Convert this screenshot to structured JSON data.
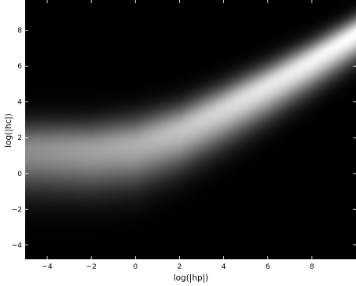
{
  "chart_data": {
    "type": "heatmap",
    "title": "",
    "xlabel": "log(|hp|)",
    "ylabel": "log(|hc|)",
    "xlim": [
      -5.0,
      10.0
    ],
    "ylim": [
      -4.8,
      9.7
    ],
    "colormap": "gray",
    "grid": false,
    "x_ticks": [
      {
        "value": -4,
        "label": "−4"
      },
      {
        "value": -2,
        "label": "−2"
      },
      {
        "value": 0,
        "label": "0"
      },
      {
        "value": 2,
        "label": "2"
      },
      {
        "value": 4,
        "label": "4"
      },
      {
        "value": 6,
        "label": "6"
      },
      {
        "value": 8,
        "label": "8"
      }
    ],
    "y_ticks": [
      {
        "value": -4,
        "label": "−4"
      },
      {
        "value": -2,
        "label": "−2"
      },
      {
        "value": 0,
        "label": "0"
      },
      {
        "value": 2,
        "label": "2"
      },
      {
        "value": 4,
        "label": "4"
      },
      {
        "value": 6,
        "label": "6"
      },
      {
        "value": 8,
        "label": "8"
      }
    ],
    "ridge": [
      {
        "x": -5.0,
        "y": 1.3
      },
      {
        "x": -2.0,
        "y": 1.3
      },
      {
        "x": 0.0,
        "y": 1.6
      },
      {
        "x": 2.0,
        "y": 2.4
      },
      {
        "x": 4.0,
        "y": 3.6
      },
      {
        "x": 6.0,
        "y": 4.9
      },
      {
        "x": 8.0,
        "y": 6.3
      },
      {
        "x": 10.0,
        "y": 7.8
      }
    ],
    "ridge_brightness": [
      {
        "x": -5.0,
        "value": 0.55
      },
      {
        "x": 0.0,
        "value": 0.68
      },
      {
        "x": 5.0,
        "value": 0.88
      },
      {
        "x": 10.0,
        "value": 1.0
      }
    ]
  }
}
